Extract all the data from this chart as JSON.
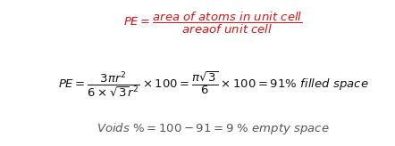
{
  "bg_color": "#ffffff",
  "line1_color": "#dd1111",
  "line2_color": "#111111",
  "line3_color": "#555555",
  "figsize": [
    4.42,
    1.64
  ],
  "dpi": 100
}
